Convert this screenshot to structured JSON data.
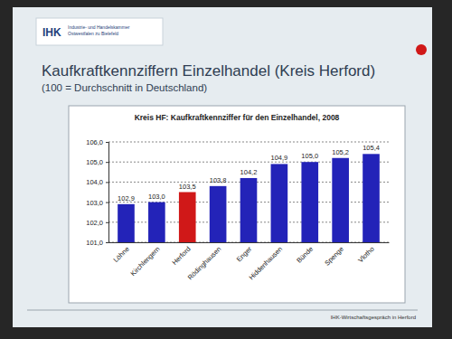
{
  "slide": {
    "logo": "Industrie- und Handelskammer Ostwestfalen zu Bielefeld",
    "logo_short": "IHK",
    "title": "Kaufkraftkennziffern Einzelhandel (Kreis Herford)",
    "subtitle": "(100 = Durchschnitt in Deutschland)",
    "footer": "IHK-Wirtschaftsgespräch in Herford"
  },
  "chart_data": {
    "type": "bar",
    "title": "Kreis HF: Kaufkraftkennziffer für den Einzelhandel, 2008",
    "categories": [
      "Löhne",
      "Kirchlengern",
      "Herford",
      "Rödinghausen",
      "Enger",
      "Hiddenhausen",
      "Bünde",
      "Spenge",
      "Vlotho"
    ],
    "values": [
      102.9,
      103.0,
      103.5,
      103.8,
      104.2,
      104.9,
      105.0,
      105.2,
      105.4
    ],
    "value_labels": [
      "102,9",
      "103,0",
      "103,5",
      "103,8",
      "104,2",
      "104,9",
      "105,0",
      "105,2",
      "105,4"
    ],
    "colors": [
      "#2323b8",
      "#2323b8",
      "#d01818",
      "#2323b8",
      "#2323b8",
      "#2323b8",
      "#2323b8",
      "#2323b8",
      "#2323b8"
    ],
    "ylim": [
      101,
      106
    ],
    "yticks": [
      {
        "value": 101,
        "label": "101,0"
      },
      {
        "value": 102,
        "label": "102,0"
      },
      {
        "value": 103,
        "label": "103,0"
      },
      {
        "value": 104,
        "label": "104,0"
      },
      {
        "value": 105,
        "label": "105,0"
      },
      {
        "value": 106,
        "label": "106,0"
      }
    ],
    "grid": true,
    "data_labels": true
  }
}
